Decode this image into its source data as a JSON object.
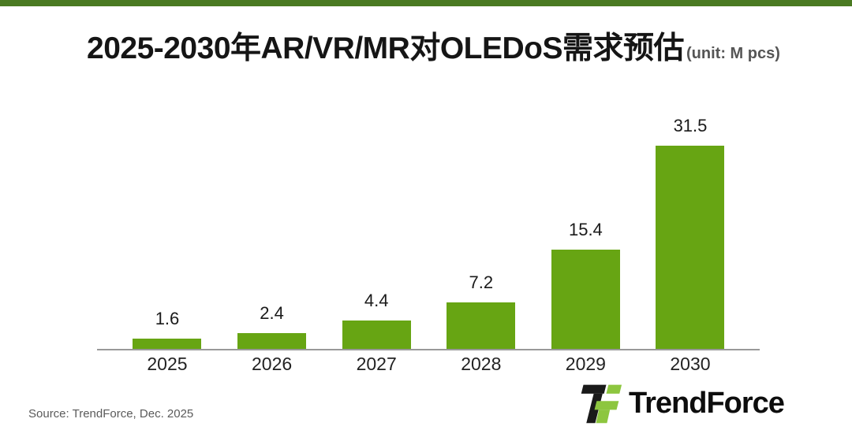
{
  "page": {
    "background_color": "#ffffff",
    "top_strip_color": "#4a7a22"
  },
  "header": {
    "title": "2025-2030年AR/VR/MR对OLEDoS需求预估",
    "unit_label": "(unit: M pcs)"
  },
  "chart_data": {
    "type": "bar",
    "title": "2025-2030年AR/VR/MR对OLEDoS需求预估",
    "unit": "M pcs",
    "categories": [
      "2025",
      "2026",
      "2027",
      "2028",
      "2029",
      "2030"
    ],
    "values": [
      1.6,
      2.4,
      4.4,
      7.2,
      15.4,
      31.5
    ],
    "bar_color": "#67a513",
    "axis_color": "#999999",
    "value_label_color": "#1a1a1a",
    "ylim": [
      0,
      35
    ],
    "grid": false,
    "legend": "none",
    "value_labels": true
  },
  "footer": {
    "source": "Source: TrendForce, Dec. 2025",
    "logo_text": "TrendForce",
    "logo_black": "#1a1a1a",
    "logo_green": "#8dc63f"
  }
}
